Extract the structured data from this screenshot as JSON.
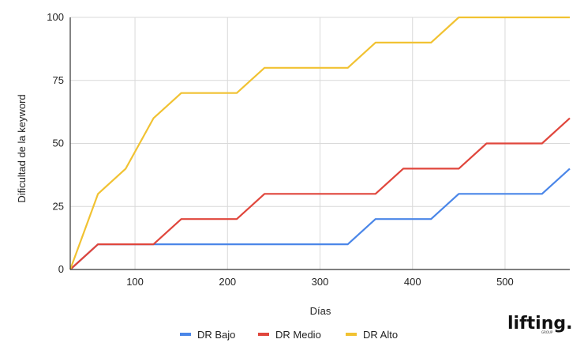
{
  "chart_data": {
    "type": "line",
    "title": "",
    "xlabel": "Días",
    "ylabel": "Dificultad de la keyword",
    "xlim": [
      30,
      570
    ],
    "ylim": [
      0,
      100
    ],
    "x_ticks": [
      100,
      200,
      300,
      400,
      500
    ],
    "y_ticks": [
      0,
      25,
      50,
      75,
      100
    ],
    "grid": true,
    "legend_position": "bottom",
    "series": [
      {
        "name": "DR Bajo",
        "color": "#4a86e8",
        "points": [
          [
            30,
            0
          ],
          [
            60,
            10
          ],
          [
            90,
            10
          ],
          [
            120,
            10
          ],
          [
            150,
            10
          ],
          [
            180,
            10
          ],
          [
            210,
            10
          ],
          [
            240,
            10
          ],
          [
            270,
            10
          ],
          [
            300,
            10
          ],
          [
            330,
            10
          ],
          [
            360,
            20
          ],
          [
            390,
            20
          ],
          [
            420,
            20
          ],
          [
            450,
            30
          ],
          [
            480,
            30
          ],
          [
            510,
            30
          ],
          [
            540,
            30
          ],
          [
            570,
            40
          ]
        ]
      },
      {
        "name": "DR Medio",
        "color": "#e0463c",
        "points": [
          [
            30,
            0
          ],
          [
            60,
            10
          ],
          [
            90,
            10
          ],
          [
            120,
            10
          ],
          [
            150,
            20
          ],
          [
            180,
            20
          ],
          [
            210,
            20
          ],
          [
            240,
            30
          ],
          [
            270,
            30
          ],
          [
            300,
            30
          ],
          [
            330,
            30
          ],
          [
            360,
            30
          ],
          [
            390,
            40
          ],
          [
            420,
            40
          ],
          [
            450,
            40
          ],
          [
            480,
            50
          ],
          [
            510,
            50
          ],
          [
            540,
            50
          ],
          [
            570,
            60
          ]
        ]
      },
      {
        "name": "DR Alto",
        "color": "#f1c232",
        "points": [
          [
            30,
            0
          ],
          [
            60,
            30
          ],
          [
            90,
            40
          ],
          [
            120,
            60
          ],
          [
            150,
            70
          ],
          [
            180,
            70
          ],
          [
            210,
            70
          ],
          [
            240,
            80
          ],
          [
            270,
            80
          ],
          [
            300,
            80
          ],
          [
            330,
            80
          ],
          [
            360,
            90
          ],
          [
            390,
            90
          ],
          [
            420,
            90
          ],
          [
            450,
            100
          ],
          [
            480,
            100
          ],
          [
            510,
            100
          ],
          [
            540,
            100
          ],
          [
            570,
            100
          ]
        ]
      }
    ]
  },
  "logo": {
    "text": "lifting.",
    "subtext": "GROUP"
  }
}
